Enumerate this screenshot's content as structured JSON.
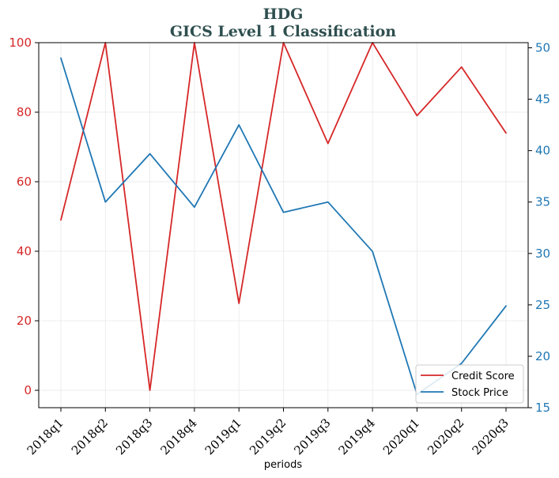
{
  "chart_data": {
    "type": "line",
    "title_line1": "HDG",
    "title_line2": "GICS Level 1 Classification",
    "xlabel": "periods",
    "categories": [
      "2018q1",
      "2018q2",
      "2018q3",
      "2018q4",
      "2019q1",
      "2019q2",
      "2019q3",
      "2019q4",
      "2020q1",
      "2020q2",
      "2020q3"
    ],
    "series": [
      {
        "name": "Credit Score",
        "axis": "left",
        "color": "#d62728",
        "values": [
          49,
          100,
          0,
          100,
          25,
          100,
          71,
          100,
          79,
          93,
          74
        ]
      },
      {
        "name": "Stock Price",
        "axis": "right",
        "color": "#1f77b4",
        "values": [
          49.0,
          35.0,
          39.7,
          34.5,
          42.5,
          34.0,
          35.0,
          30.2,
          16.3,
          19.3,
          24.9
        ]
      }
    ],
    "ylim_left": [
      -5,
      100
    ],
    "yticks_left": [
      "0",
      "20",
      "40",
      "60",
      "80",
      "100"
    ],
    "ylim_right": [
      15,
      50.5
    ],
    "yticks_right": [
      "15",
      "20",
      "25",
      "30",
      "35",
      "40",
      "45",
      "50"
    ],
    "grid": true,
    "legend_position": "lower-right"
  }
}
